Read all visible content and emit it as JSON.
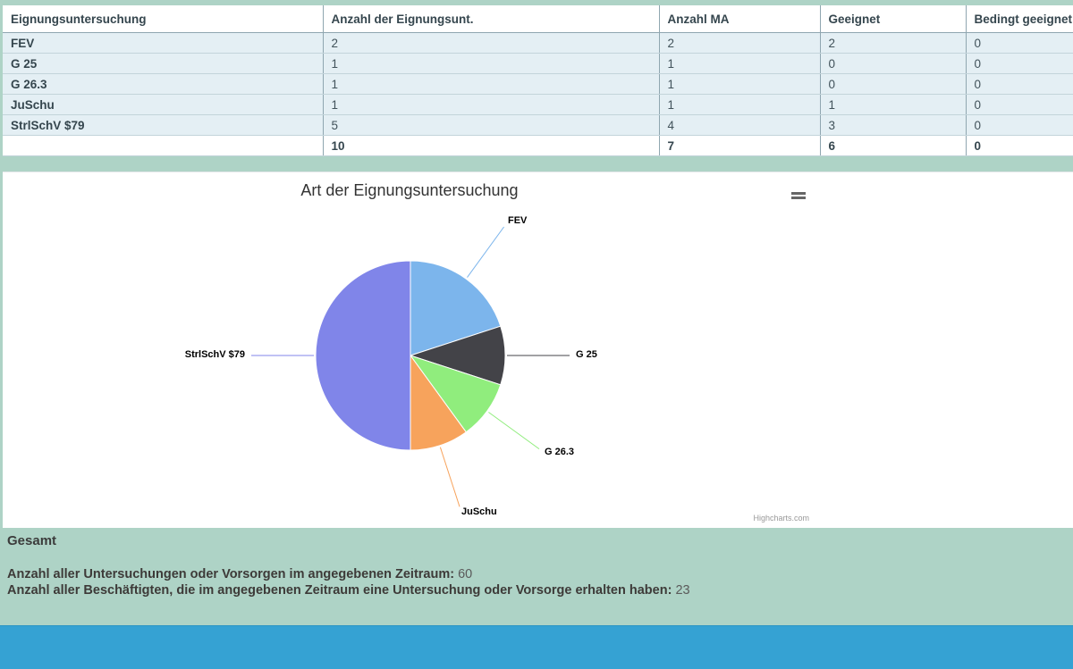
{
  "colors": {
    "page_bg": "#aed3c6",
    "footer_bar": "#35a2d3",
    "row_bg": "#e4eff4",
    "table_text": "#35464e",
    "chart_title": "#333333"
  },
  "table": {
    "headers": [
      "Eignungsuntersuchung",
      "Anzahl der Eignungsunt.",
      "Anzahl MA",
      "Geeignet",
      "Bedingt geeignet"
    ],
    "rows": [
      {
        "label": "FEV",
        "values": [
          "2",
          "2",
          "2",
          "0"
        ]
      },
      {
        "label": "G 25",
        "values": [
          "1",
          "1",
          "0",
          "0"
        ]
      },
      {
        "label": "G 26.3",
        "values": [
          "1",
          "1",
          "0",
          "0"
        ]
      },
      {
        "label": "JuSchu",
        "values": [
          "1",
          "1",
          "1",
          "0"
        ]
      },
      {
        "label": "StrlSchV $79",
        "values": [
          "5",
          "4",
          "3",
          "0"
        ]
      }
    ],
    "total": {
      "label": "",
      "values": [
        "10",
        "7",
        "6",
        "0"
      ]
    }
  },
  "chart": {
    "title": "Art der Eignungsuntersuchung",
    "credits": "Highcharts.com",
    "menu_icon": "hamburger-icon"
  },
  "chart_data": {
    "type": "pie",
    "title": "Art der Eignungsuntersuchung",
    "legend": "off",
    "data_labels": "on",
    "start_angle_deg": 0,
    "points": [
      {
        "label": "FEV",
        "value": 2,
        "color": "#7cb5ec"
      },
      {
        "label": "G 25",
        "value": 1,
        "color": "#434348"
      },
      {
        "label": "G 26.3",
        "value": 1,
        "color": "#90ed7d"
      },
      {
        "label": "JuSchu",
        "value": 1,
        "color": "#f7a35c"
      },
      {
        "label": "StrlSchV $79",
        "value": 5,
        "color": "#8085e9"
      }
    ]
  },
  "summary": {
    "heading": "Gesamt",
    "lines": [
      {
        "label": "Anzahl aller Untersuchungen oder Vorsorgen im angegebenen Zeitraum:",
        "value": "60"
      },
      {
        "label": "Anzahl aller Beschäftigten, die im angegebenen Zeitraum eine Untersuchung oder Vorsorge erhalten haben:",
        "value": "23"
      }
    ]
  }
}
